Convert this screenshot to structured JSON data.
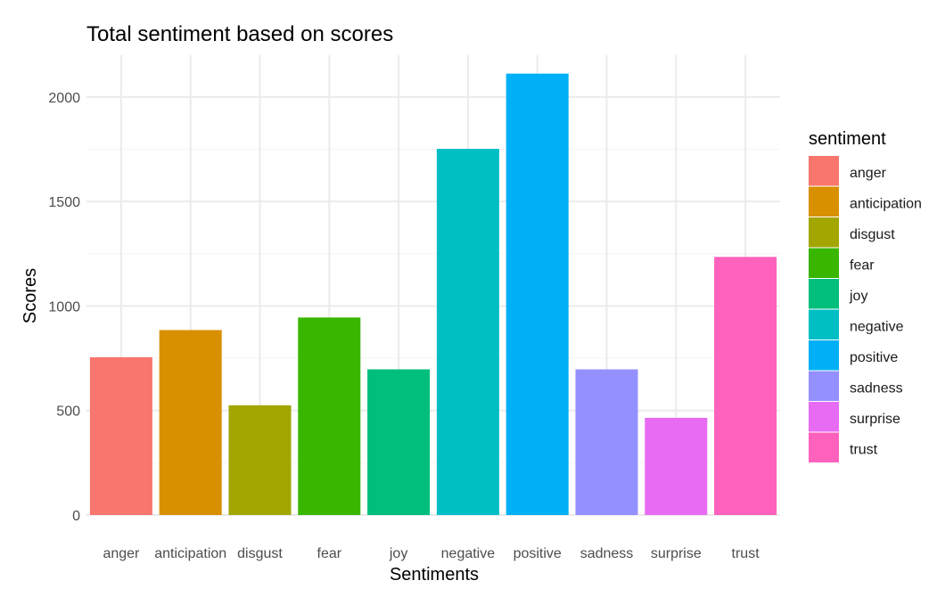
{
  "chart_data": {
    "type": "bar",
    "title": "Total sentiment based on scores",
    "xlabel": "Sentiments",
    "ylabel": "Scores",
    "categories": [
      "anger",
      "anticipation",
      "disgust",
      "fear",
      "joy",
      "negative",
      "positive",
      "sadness",
      "surprise",
      "trust"
    ],
    "values": [
      755,
      885,
      525,
      945,
      697,
      1752,
      2112,
      697,
      465,
      1235
    ],
    "colors": [
      "#F8766D",
      "#D89000",
      "#A3A500",
      "#39B600",
      "#00BF7D",
      "#00BFC4",
      "#00B0F6",
      "#9590FF",
      "#E76BF3",
      "#FF62BC"
    ],
    "ylim": [
      0,
      2200
    ],
    "yticks": [
      0,
      500,
      1000,
      1500,
      2000
    ],
    "grid": true,
    "legend": {
      "title": "sentiment",
      "position": "right",
      "items": [
        "anger",
        "anticipation",
        "disgust",
        "fear",
        "joy",
        "negative",
        "positive",
        "sadness",
        "surprise",
        "trust"
      ]
    }
  }
}
